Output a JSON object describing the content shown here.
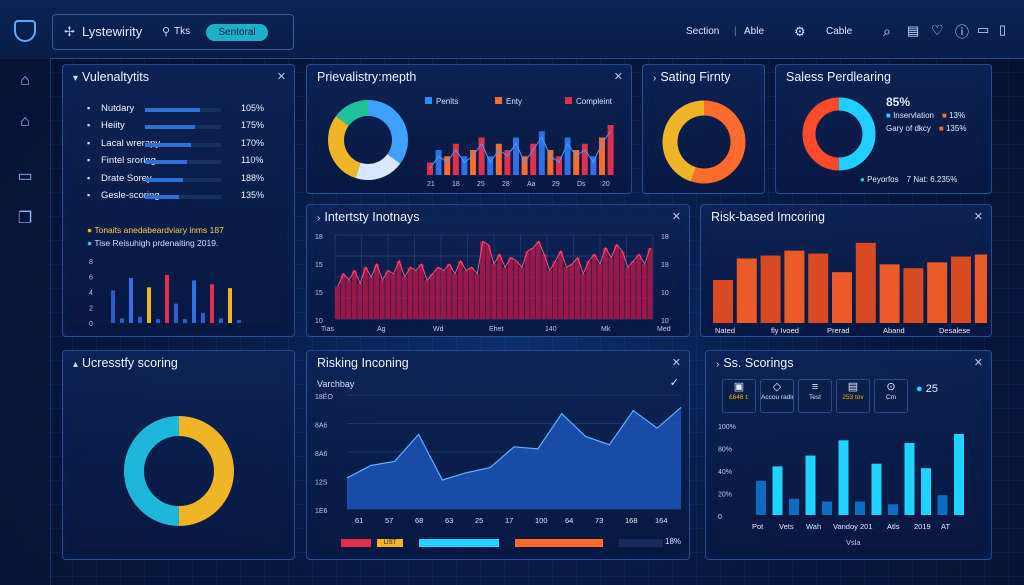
{
  "topbar": {
    "app_name": "Lystewirity",
    "tab": "Tks",
    "pill_button": "Sentoral",
    "link1": "Section",
    "link2": "Able",
    "link3": "Cable"
  },
  "panels": {
    "vuln": {
      "title": "Vulenaltytits",
      "rows": [
        {
          "label": "Nutdary",
          "value": "105%",
          "fill": 0.72
        },
        {
          "label": "Heiity",
          "value": "175%",
          "fill": 0.66
        },
        {
          "label": "Lacal wrerapy",
          "value": "170%",
          "fill": 0.6
        },
        {
          "label": "Fintel sroring",
          "value": "110%",
          "fill": 0.55
        },
        {
          "label": "Drate Sorey",
          "value": "188%",
          "fill": 0.5
        },
        {
          "label": "Gesle-scoring",
          "value": "135%",
          "fill": 0.45
        }
      ],
      "legend1": "Tonaits anedabeardviary inms 187",
      "legend2": "Tise Reisuhigh prdenaiting 2019.",
      "yticks": [
        "8",
        "6",
        "4",
        "2",
        "0"
      ],
      "bars": [
        {
          "v": 4.2,
          "c": "#2b5fd1"
        },
        {
          "v": 0.6,
          "c": "#2b5fd1"
        },
        {
          "v": 5.8,
          "c": "#2f70e6"
        },
        {
          "v": 0.8,
          "c": "#2b5fd1"
        },
        {
          "v": 4.6,
          "c": "#f0b429"
        },
        {
          "v": 0.5,
          "c": "#2b5fd1"
        },
        {
          "v": 6.2,
          "c": "#e0304f"
        },
        {
          "v": 2.5,
          "c": "#2b5fd1"
        },
        {
          "v": 0.5,
          "c": "#2b5fd1"
        },
        {
          "v": 5.5,
          "c": "#2f70e6"
        },
        {
          "v": 1.3,
          "c": "#2b5fd1"
        },
        {
          "v": 5.0,
          "c": "#e0304f"
        },
        {
          "v": 0.6,
          "c": "#2b5fd1"
        },
        {
          "v": 4.5,
          "c": "#f0b429"
        },
        {
          "v": 0.4,
          "c": "#2b5fd1"
        }
      ]
    },
    "priv": {
      "title": "Prievalistry:mepth",
      "legend": [
        {
          "label": "Penlts",
          "color": "#2f8cff"
        },
        {
          "label": "Enty",
          "color": "#ff6b2c"
        },
        {
          "label": "Compleint",
          "color": "#e0304f"
        }
      ],
      "xticks": [
        "21",
        "18",
        "25",
        "28",
        "Aa",
        "29",
        "Ds",
        "20"
      ],
      "donut": [
        {
          "v": 0.35,
          "c": "#3fa0ff"
        },
        {
          "v": 0.2,
          "c": "#d9e6ff"
        },
        {
          "v": 0.3,
          "c": "#f0b429"
        },
        {
          "v": 0.15,
          "c": "#1fc29a"
        }
      ],
      "bars": [
        2,
        4,
        3,
        5,
        3,
        4,
        6,
        3,
        5,
        4,
        6,
        3,
        5,
        7,
        4,
        3,
        6,
        4,
        5,
        3,
        6,
        8
      ]
    },
    "sating": {
      "title": "Sating Firnty",
      "donut": [
        {
          "v": 0.55,
          "c": "#ff6b2c"
        },
        {
          "v": 0.45,
          "c": "#f0b429"
        }
      ]
    },
    "sales": {
      "title": "Saless Perdlearing",
      "big": "85%",
      "l1": "Inservlation",
      "l1v": "13%",
      "l2": "Gary of dkcy",
      "l2v": "135%",
      "footer1": "Peyorfos",
      "footer2": "7 Nat: 6.235%",
      "donut": [
        {
          "v": 0.5,
          "c": "#1fd0ff"
        },
        {
          "v": 0.5,
          "c": "#ff4a2c"
        }
      ]
    },
    "intensity": {
      "title": "Intertsty Inotnays",
      "yticks_left": [
        "18",
        "15",
        "15",
        "10"
      ],
      "yticks_right": [
        "18",
        "18",
        "10",
        "10"
      ],
      "xticks": [
        "Tias",
        "Ag",
        "Wd",
        "Ehet",
        "140",
        "Mk",
        "Med"
      ],
      "values": [
        10,
        14,
        12,
        15,
        11,
        16,
        13,
        17,
        12,
        15,
        14,
        18,
        13,
        16,
        15,
        17,
        12,
        14,
        16,
        15,
        17,
        14,
        18,
        15,
        16,
        14,
        24,
        23,
        17,
        20,
        16,
        19,
        18,
        16,
        21,
        22,
        24,
        20,
        15,
        18,
        21,
        16,
        17,
        19,
        14,
        18,
        20,
        17,
        22,
        19,
        23,
        21,
        16,
        18,
        20,
        17,
        22
      ]
    },
    "risk": {
      "title": "Risk-based Imcoring",
      "cats": [
        "Nated",
        "fly Ivoed",
        "Prerad",
        "Aband",
        "Desalese"
      ],
      "values": [
        44,
        66,
        69,
        74,
        71,
        52,
        82,
        60,
        56,
        62,
        68,
        70
      ]
    },
    "uscore": {
      "title": "Ucresstfy scoring",
      "donut": [
        {
          "v": 0.5,
          "c": "#f0b429"
        },
        {
          "v": 0.5,
          "c": "#1fb7d9"
        }
      ]
    },
    "risking": {
      "title": "Risking Inconing",
      "subtitle": "Varchbay",
      "yticks": [
        "18ÉO",
        "8A6",
        "8A6",
        "12S",
        "1E6"
      ],
      "xticks": [
        "61",
        "57",
        "68",
        "63",
        "25",
        "17",
        "100",
        "64",
        "73",
        "168",
        "164"
      ],
      "values": [
        30,
        42,
        46,
        72,
        28,
        35,
        40,
        60,
        58,
        92,
        70,
        62,
        95,
        78,
        98
      ],
      "bottom_label": "LIST",
      "bottom_right": "18%"
    },
    "ss": {
      "title": "Ss. Scorings",
      "icons": [
        {
          "icon": "▣",
          "label": "£646 t:"
        },
        {
          "icon": "◇",
          "label": "Accou rading"
        },
        {
          "icon": "≡",
          "label": "Test"
        },
        {
          "icon": "▤",
          "label": "253 tov"
        },
        {
          "icon": "⊙",
          "label": "Cm"
        }
      ],
      "badge_value": "25",
      "yticks": [
        "100%",
        "80%",
        "40%",
        "20%",
        "0"
      ],
      "xticks": [
        "Pot",
        "Vets",
        "Wah",
        "Vandoy",
        "201",
        "Atls",
        "2019",
        "AT"
      ],
      "xlabel": "Vsla",
      "values": [
        {
          "v": 38,
          "c": "#0b6dbf"
        },
        {
          "v": 54,
          "c": "#1fd3ff"
        },
        {
          "v": 18,
          "c": "#0b6dbf"
        },
        {
          "v": 66,
          "c": "#1fd3ff"
        },
        {
          "v": 15,
          "c": "#0b6dbf"
        },
        {
          "v": 83,
          "c": "#1fd3ff"
        },
        {
          "v": 15,
          "c": "#0b6dbf"
        },
        {
          "v": 57,
          "c": "#1fd3ff"
        },
        {
          "v": 12,
          "c": "#0b6dbf"
        },
        {
          "v": 80,
          "c": "#1fd3ff"
        },
        {
          "v": 52,
          "c": "#1fd3ff"
        },
        {
          "v": 22,
          "c": "#0b6dbf"
        },
        {
          "v": 90,
          "c": "#1fd3ff"
        }
      ]
    }
  }
}
